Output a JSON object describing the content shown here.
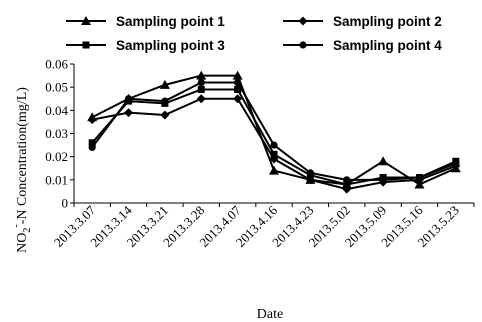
{
  "chart_data": {
    "type": "line",
    "title": "",
    "xlabel": "Date",
    "ylabel": "NO2--N Concentration(mg/L)",
    "ylabel_parts": {
      "pre": "NO",
      "sub": "2",
      "sup": "-",
      "post": "-N Concentration(mg/L)"
    },
    "categories": [
      "2013.3.07",
      "2013.3.14",
      "2013.3.21",
      "2013.3.28",
      "2013.4.07",
      "2013.4.16",
      "2013.4.23",
      "2013.5.02",
      "2013.5.09",
      "2013.5.16",
      "2013.5.23"
    ],
    "ylim": [
      0,
      0.06
    ],
    "yticks": [
      "0",
      "0.01",
      "0.02",
      "0.03",
      "0.04",
      "0.05",
      "0.06"
    ],
    "grid": false,
    "legend_position": "top",
    "series": [
      {
        "name": "Sampling point 1",
        "marker": "triangle",
        "values": [
          0.037,
          0.045,
          0.051,
          0.055,
          0.055,
          0.014,
          0.01,
          0.008,
          0.018,
          0.008,
          0.015
        ]
      },
      {
        "name": "Sampling point 2",
        "marker": "diamond",
        "values": [
          0.036,
          0.039,
          0.038,
          0.045,
          0.045,
          0.019,
          0.01,
          0.006,
          0.009,
          0.01,
          0.016
        ]
      },
      {
        "name": "Sampling point 3",
        "marker": "square",
        "values": [
          0.026,
          0.044,
          0.043,
          0.049,
          0.049,
          0.021,
          0.012,
          0.008,
          0.011,
          0.011,
          0.018
        ]
      },
      {
        "name": "Sampling point 4",
        "marker": "circle",
        "values": [
          0.024,
          0.045,
          0.044,
          0.052,
          0.052,
          0.025,
          0.013,
          0.01,
          0.01,
          0.011,
          0.017
        ]
      }
    ]
  }
}
